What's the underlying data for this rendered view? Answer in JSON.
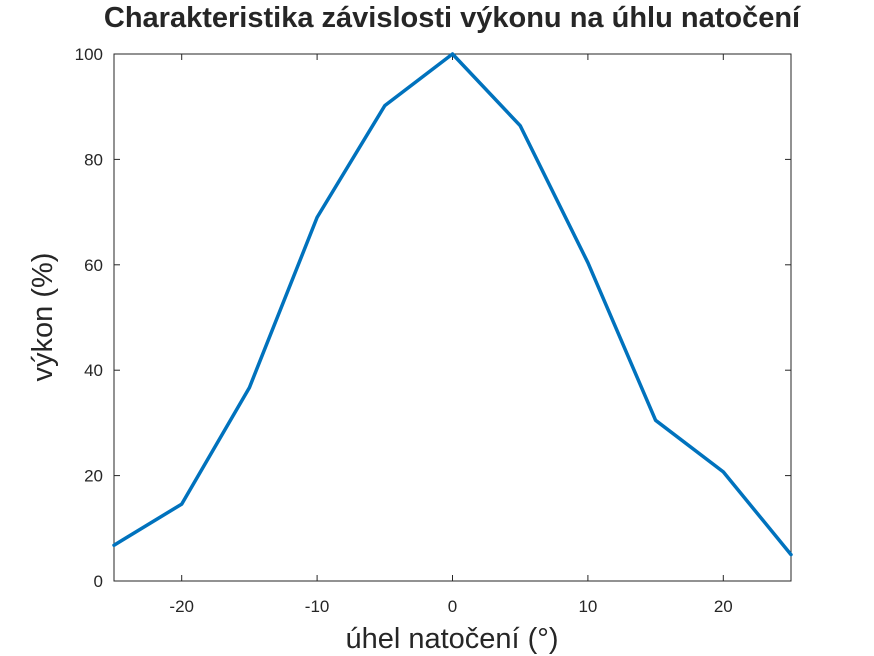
{
  "chart_data": {
    "type": "line",
    "title": "Charakteristika závislosti výkonu na úhlu natočení",
    "xlabel": "úhel natočení (°)",
    "ylabel": "výkon (%)",
    "xlim": [
      -25,
      25
    ],
    "ylim": [
      0,
      100
    ],
    "xticks": [
      -20,
      -10,
      0,
      10,
      20
    ],
    "yticks": [
      0,
      20,
      40,
      60,
      80,
      100
    ],
    "xtick_labels": [
      "-20",
      "-10",
      "0",
      "10",
      "20"
    ],
    "ytick_labels": [
      "0",
      "20",
      "40",
      "60",
      "80",
      "100"
    ],
    "grid": true,
    "series": [
      {
        "color": "#0072BD",
        "x": [
          -25,
          -20,
          -15,
          -10,
          -5,
          0,
          5,
          10,
          15,
          20,
          25
        ],
        "y": [
          6.8,
          14.6,
          36.7,
          69,
          90.2,
          100,
          86.4,
          60.4,
          30.5,
          20.7,
          5
        ]
      }
    ]
  }
}
